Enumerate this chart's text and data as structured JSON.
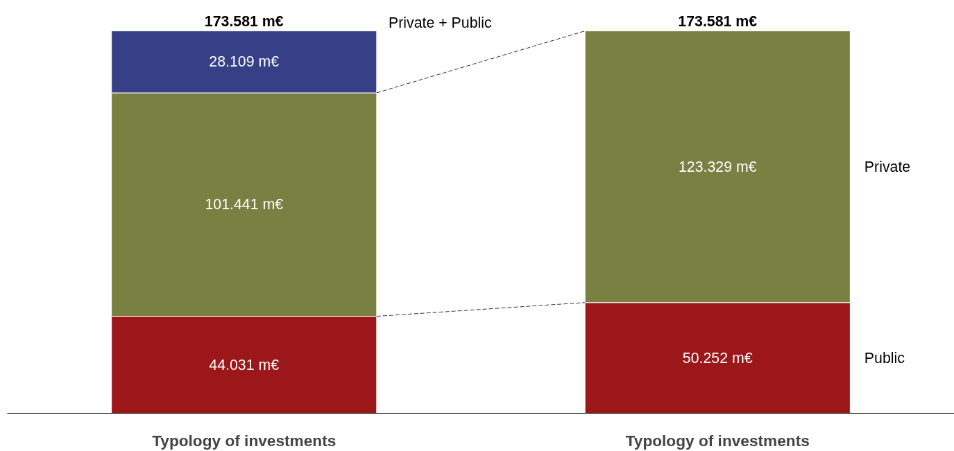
{
  "chart_data": {
    "type": "bar",
    "stacked": true,
    "categories": [
      "Typology of investments",
      "Typology of investments"
    ],
    "series": [
      {
        "name": "Public",
        "color": "#9b1719",
        "values": [
          44.031,
          50.252
        ],
        "value_labels": [
          "44.031 m€",
          "50.252 m€"
        ]
      },
      {
        "name": "Private",
        "color": "#788142",
        "values": [
          101.441,
          123.329
        ],
        "value_labels": [
          "101.441 m€",
          "123.329 m€"
        ]
      },
      {
        "name": "Private + Public",
        "color": "#374087",
        "values": [
          28.109,
          null
        ],
        "value_labels": [
          "28.109 m€",
          null
        ]
      }
    ],
    "totals": [
      "173.581 m€",
      "173.581 m€"
    ],
    "legend": false,
    "grid": false,
    "tick_labels": "x"
  }
}
